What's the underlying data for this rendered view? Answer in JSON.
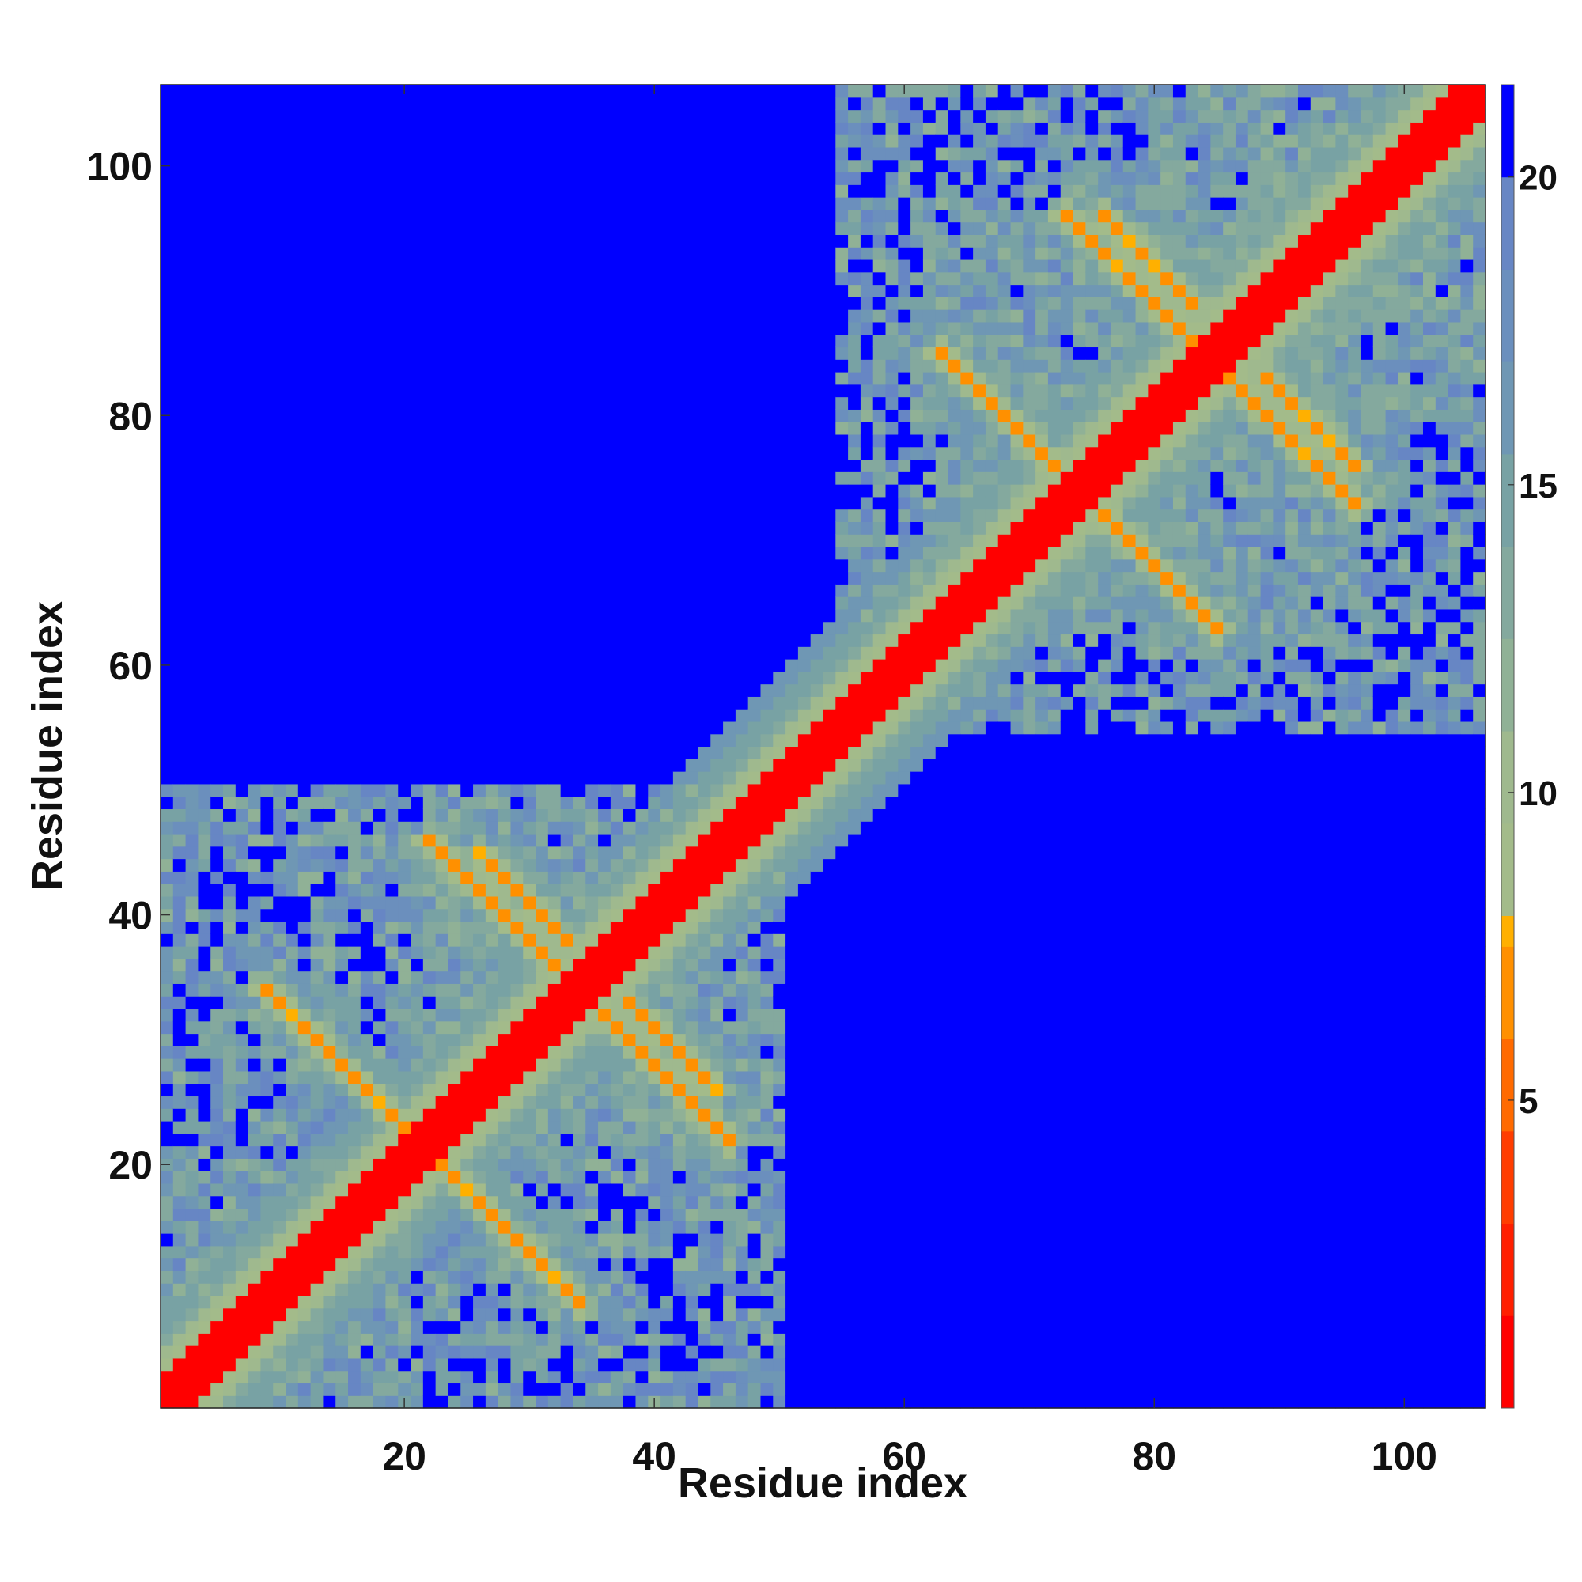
{
  "chart_data": {
    "type": "heatmap",
    "title": "",
    "xlabel": "Residue index",
    "ylabel": "Residue index",
    "n_residues": 106,
    "xlim": [
      0.5,
      106.5
    ],
    "ylim": [
      0.5,
      106.5
    ],
    "x_ticks": [
      20,
      40,
      60,
      80,
      100
    ],
    "y_ticks": [
      20,
      40,
      60,
      80,
      100
    ],
    "colorbar": {
      "range": [
        0,
        21.5
      ],
      "ticks": [
        5,
        10,
        15,
        20
      ],
      "levels": [
        {
          "max": 1.5,
          "color": "#ff0000"
        },
        {
          "max": 3.0,
          "color": "#ff1f00"
        },
        {
          "max": 4.5,
          "color": "#ff3d00"
        },
        {
          "max": 6.0,
          "color": "#ff6a00"
        },
        {
          "max": 7.5,
          "color": "#ff9000"
        },
        {
          "max": 8.0,
          "color": "#ffb000"
        },
        {
          "max": 9.5,
          "color": "#a3bb8a"
        },
        {
          "max": 11.0,
          "color": "#9fb98e"
        },
        {
          "max": 12.5,
          "color": "#90b196"
        },
        {
          "max": 14.0,
          "color": "#84a99e"
        },
        {
          "max": 15.5,
          "color": "#78a2a4"
        },
        {
          "max": 17.0,
          "color": "#6f97b4"
        },
        {
          "max": 18.5,
          "color": "#6b8fbd"
        },
        {
          "max": 20.0,
          "color": "#6786c4"
        },
        {
          "max": 21.5,
          "color": "#0000ff"
        }
      ]
    },
    "structure": {
      "diagonal_band": [
        [
          1,
          106
        ]
      ],
      "antiparallel_strand_pairs": [
        {
          "i_start": 9,
          "i_end": 24,
          "j_start": 34,
          "j_end": 21
        },
        {
          "i_start": 26,
          "i_end": 33,
          "j_start": 45,
          "j_end": 37
        },
        {
          "i_start": 35,
          "i_end": 46,
          "j_start": 33,
          "j_end": 26
        },
        {
          "i_start": 63,
          "i_end": 73,
          "j_start": 85,
          "j_end": 75
        },
        {
          "i_start": 76,
          "i_end": 83,
          "j_start": 96,
          "j_end": 88
        },
        {
          "i_start": 86,
          "i_end": 96,
          "j_start": 83,
          "j_end": 74
        },
        {
          "i_start": 75,
          "i_end": 85,
          "j_start": 73,
          "j_end": 64
        }
      ]
    }
  }
}
